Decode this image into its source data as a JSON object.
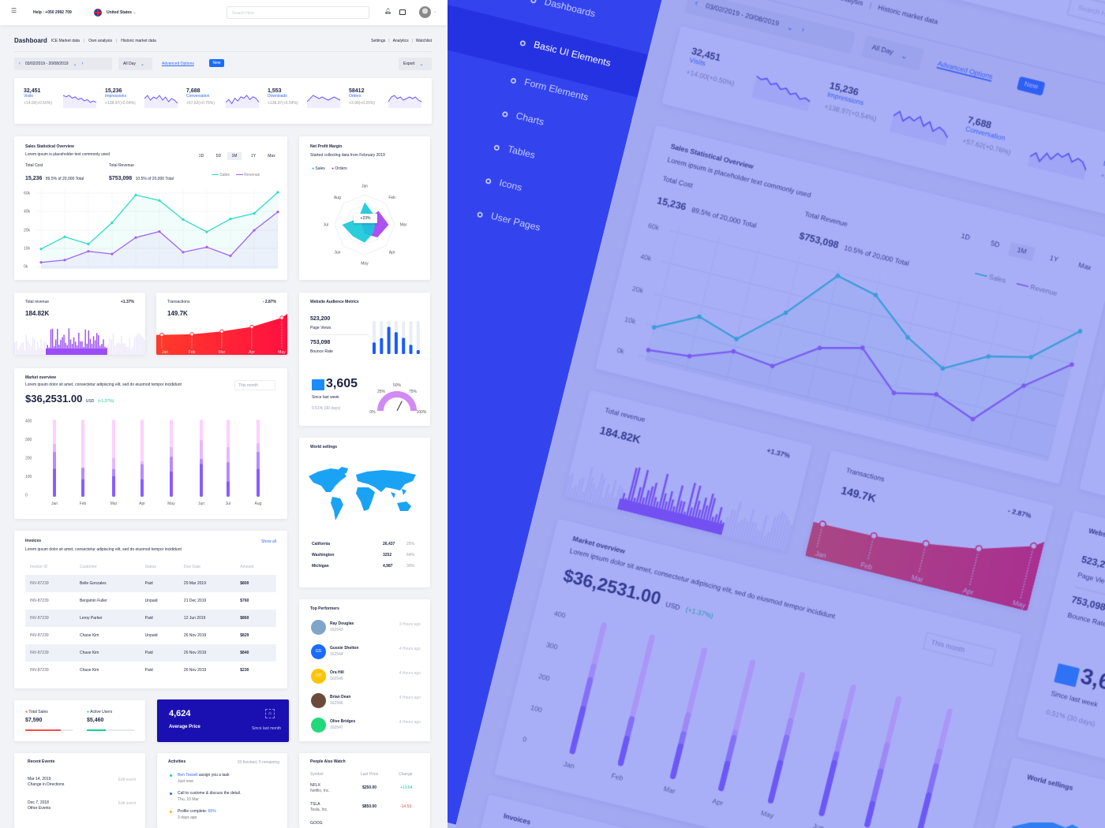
{
  "topbar": {
    "help": "Help : +050 2992 709",
    "country": "United States",
    "search_placeholder": "Search Here"
  },
  "breadcrumb": {
    "title": "Dashboard",
    "links": [
      "ICE Market data",
      "Own analysis",
      "Historic market data"
    ],
    "right_links": [
      "Settings",
      "Analytics",
      "Watchlist"
    ]
  },
  "controls": {
    "date_range": "03/02/2019 - 20/08/2019",
    "period": "All Day",
    "advanced": "Advanced Options",
    "new_badge": "New",
    "export": "Export"
  },
  "stats": [
    {
      "value": "32,451",
      "label": "Visits",
      "change": "+14.00(+0.50%)",
      "spark": [
        8,
        7,
        8,
        6,
        7,
        5,
        6,
        4,
        5,
        3,
        4,
        3
      ]
    },
    {
      "value": "15,236",
      "label": "Impressions",
      "change": "+138.97(+0.54%)",
      "spark": [
        5,
        7,
        4,
        6,
        5,
        7,
        4,
        6,
        3,
        5,
        4,
        2
      ]
    },
    {
      "value": "7,688",
      "label": "Conversation",
      "change": "+57.62(+0.76%)",
      "spark": [
        3,
        5,
        2,
        6,
        4,
        7,
        6,
        8,
        5,
        7,
        6,
        3
      ]
    },
    {
      "value": "1,553",
      "label": "Downloads",
      "change": "+138.97(+0.54%)",
      "spark": [
        3,
        5,
        7,
        6,
        5,
        6,
        5,
        4,
        5,
        6,
        5,
        4
      ]
    },
    {
      "value": "58412",
      "label": "Orders",
      "change": "+3.90(+0.25%)",
      "spark": [
        3,
        6,
        7,
        5,
        6,
        4,
        5,
        6,
        5,
        6,
        4,
        3
      ]
    }
  ],
  "sales": {
    "title": "Sales Statistical Overview",
    "subtitle": "Lorem ipsum is placeholder text commonly used",
    "ranges": [
      "1D",
      "5D",
      "1M",
      "1Y",
      "Max"
    ],
    "active_range": "1M",
    "total_cost_label": "Total Cost",
    "total_cost": "15,236",
    "total_cost_note": "89.5% of 20,000 Total",
    "total_revenue_label": "Total Revenue",
    "total_revenue": "$753,098",
    "total_revenue_note": "10.5% of 20,000 Total"
  },
  "profit": {
    "title": "Net Profit Margin",
    "subtitle": "Started collecting data from February 2019",
    "tooltip": "+23%"
  },
  "revenue": {
    "title": "Total revenue",
    "value": "184.82K",
    "change": "+1.37%"
  },
  "transactions": {
    "title": "Transactions",
    "value": "149.7K",
    "change": "- 2.87%"
  },
  "audience": {
    "title": "Website Audience Metrics",
    "page_views": "523,200",
    "page_views_label": "Page Views",
    "bounce": "753,098",
    "bounce_label": "Bounce Rate",
    "count": "3,605",
    "count_label": "Since last week",
    "count_note": "0.51% (30 days)",
    "gauge_labels": [
      "0%",
      "25%",
      "50%",
      "75%",
      "100%"
    ],
    "gauge_value": 0.65
  },
  "market": {
    "title": "Market overview",
    "desc": "Lorem ipsum dolor sit amet, consectetur adipiscing elit, sed do eiusmod tempor incididunt",
    "select": "This month",
    "value": "$36,2531.00",
    "currency": "USD",
    "change": "(+1.37%)"
  },
  "world": {
    "title": "World sellings",
    "rows": [
      {
        "name": "California",
        "value": "26,437",
        "pct": "25%"
      },
      {
        "name": "Washington",
        "value": "3252",
        "pct": "64%"
      },
      {
        "name": "Michigan",
        "value": "4,987",
        "pct": "30%"
      }
    ]
  },
  "invoices": {
    "title": "Invoices",
    "desc": "Lorem ipsum dolor sit amet, consectetur adipiscing elit, sed do eiusmod tempor incididunt",
    "show_all": "Show all",
    "headers": [
      "Invoice ID",
      "Customer",
      "Status",
      "Due Date",
      "Amount"
    ],
    "rows": [
      [
        "INV-87239",
        "Belle Gonzales",
        "Paid",
        "29 Mar 2019",
        "$800"
      ],
      [
        "INV-87239",
        "Benjamin Fuller",
        "Unpaid",
        "21 Dec 2019",
        "$760"
      ],
      [
        "INV-87239",
        "Leroy Parker",
        "Paid",
        "12 Jun 2019",
        "$860"
      ],
      [
        "INV-87239",
        "Chase Kim",
        "Unpaid",
        "26 Nov 2019",
        "$829"
      ],
      [
        "INV-87239",
        "Chase Kim",
        "Paid",
        "26 Nov 2019",
        "$840"
      ],
      [
        "INV-87239",
        "Chase Kim",
        "Paid",
        "26 Nov 2019",
        "$230"
      ]
    ]
  },
  "performers": {
    "title": "Top Performers",
    "items": [
      {
        "name": "Ray Douglas",
        "id": "162543",
        "time": "3 Hours ago",
        "initials": "",
        "color": "#7fa6c9"
      },
      {
        "name": "Gussie Shelton",
        "id": "162544",
        "time": "4 Hours ago",
        "initials": "GS",
        "color": "#1a6bff"
      },
      {
        "name": "Ora Hill",
        "id": "162545",
        "time": "4 Hours ago",
        "initials": "OH",
        "color": "#ffc400"
      },
      {
        "name": "Brian Dean",
        "id": "162546",
        "time": "4 Hours ago",
        "initials": "",
        "color": "#6b4a3a"
      },
      {
        "name": "Olive Bridges",
        "id": "162547",
        "time": "4 Hours ago",
        "initials": "",
        "color": "#22d97a"
      }
    ]
  },
  "totals": {
    "sales_label": "Total Sales",
    "sales": "$7,590",
    "sales_progress": 0.75,
    "users_label": "Active Users",
    "users": "$5,460",
    "users_progress": 0.4
  },
  "avg": {
    "value": "4,624",
    "label": "Average Price",
    "note": "Since last month"
  },
  "events": {
    "title": "Recent Events",
    "items": [
      {
        "date": "Mar 14, 2019",
        "title": "Change in Directions",
        "action": "Edit event"
      },
      {
        "date": "Dec 7, 2018",
        "title": "Other Events",
        "action": "Edit event"
      }
    ]
  },
  "activities": {
    "title": "Activities",
    "summary": "20 finished, 5 remaining",
    "items": [
      {
        "link": "Ben Tossell",
        "text": " assign you a task",
        "time": "Just now",
        "color": "#1bd67f"
      },
      {
        "link": "",
        "text": "Call to custome & discuss the detail.",
        "time": "Thu, 10 Mar",
        "color": "#1a6bff"
      },
      {
        "link": "",
        "text": "Profile complete: ",
        "extra": "65%",
        "time": "3 days ago",
        "color": "#ffb300"
      }
    ]
  },
  "watch": {
    "title": "People Also Watch",
    "headers": [
      "Symbol",
      "Last Price",
      "Change"
    ],
    "rows": [
      {
        "symbol": "NFLX",
        "company": "Netflix, Inc.",
        "price": "$250.00",
        "change": "+12.64",
        "color": "#14c98c"
      },
      {
        "symbol": "TSLA",
        "company": "Tesla, Inc.",
        "price": "$850.00",
        "change": "-14.53",
        "color": "#ff4d4d"
      }
    ],
    "partial_symbol": "GOOG"
  },
  "sidebar": {
    "items": [
      "Dashboards",
      "Basic UI Elements",
      "Form Elements",
      "Charts",
      "Tables",
      "Icons",
      "User Pages"
    ],
    "active": "Basic UI Elements"
  },
  "colors": {
    "accent": "#2f6bff",
    "sales": "#2fdcc8",
    "revenue": "#a560f5",
    "transactions": "#ff2a3a",
    "avg_card": "#1a0fb0",
    "panel": "#3d4ef0"
  },
  "chart_data": [
    {
      "type": "line",
      "title": "Sales Statistical Overview",
      "y_ticks": [
        "0k",
        "10k",
        "20k",
        "40k",
        "60k"
      ],
      "series": [
        {
          "name": "Sales",
          "values": [
            9.7,
            16.4,
            12.4,
            28,
            58,
            52,
            31.4,
            19.1,
            32,
            37.8,
            61
          ]
        },
        {
          "name": "Revenue",
          "values": [
            2.3,
            3.6,
            8.4,
            6.9,
            16,
            19.3,
            7.9,
            10.7,
            5.9,
            20,
            39.4
          ]
        }
      ],
      "units": "k",
      "legend": "top-right"
    },
    {
      "type": "radar",
      "title": "Net Profit Margin",
      "categories": [
        "Jan",
        "Feb",
        "Mar",
        "Apr",
        "May",
        "Jun",
        "Jul",
        "Aug"
      ],
      "series": [
        {
          "name": "Sales",
          "values": [
            0.75,
            0.45,
            0.35,
            0.4,
            0.6,
            0.55,
            0.75,
            0.3
          ]
        },
        {
          "name": "Orders",
          "values": [
            0.1,
            0.65,
            0.8,
            0.6,
            0.3,
            0.1,
            0.1,
            0.1
          ]
        }
      ],
      "legend": "top-left"
    },
    {
      "type": "area",
      "title": "Transactions",
      "categories": [
        "Jan",
        "Feb",
        "Mar",
        "Apr",
        "May"
      ],
      "values": [
        10,
        10.5,
        13,
        17,
        25
      ]
    },
    {
      "type": "bar",
      "title": "Website Audience Metrics",
      "values": [
        0.35,
        0.48,
        0.82,
        0.66,
        0.49,
        0.28,
        0.12
      ]
    },
    {
      "type": "bar",
      "title": "Market overview",
      "categories": [
        "Jan",
        "Feb",
        "Mar",
        "Apr",
        "May",
        "Jun",
        "Jul",
        "Aug"
      ],
      "y_ticks": [
        0,
        100,
        200,
        300,
        400
      ],
      "ylim": [
        0,
        400
      ],
      "series": [
        {
          "values": [
            135,
            78,
            95,
            78,
            120,
            160,
            66,
            134
          ]
        },
        {
          "values": [
            226,
            141,
            134,
            160,
            200,
            188,
            170,
            226
          ]
        },
        {
          "values": [
            269,
            141,
            194,
            177,
            252,
            290,
            252,
            273
          ]
        }
      ]
    }
  ]
}
